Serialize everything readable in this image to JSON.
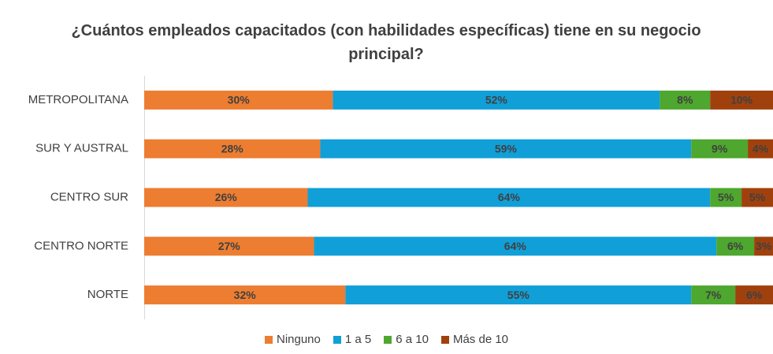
{
  "chart_data": {
    "type": "stacked_bar_horizontal",
    "title": "¿Cuántos empleados capacitados (con habilidades específicas) tiene en su negocio principal?",
    "categories": [
      "METROPOLITANA",
      "SUR Y AUSTRAL",
      "CENTRO SUR",
      "CENTRO NORTE",
      "NORTE"
    ],
    "series": [
      {
        "name": "Ninguno",
        "color": "#ed7d31",
        "values": [
          30,
          28,
          26,
          27,
          32
        ],
        "value_labels": [
          "30%",
          "28%",
          "26%",
          "27%",
          "32%"
        ]
      },
      {
        "name": "1 a 5",
        "color": "#119fd8",
        "values": [
          52,
          59,
          64,
          64,
          55
        ],
        "value_labels": [
          "52%",
          "59%",
          "64%",
          "64%",
          "55%"
        ]
      },
      {
        "name": "6 a 10",
        "color": "#4ea72e",
        "values": [
          8,
          9,
          5,
          6,
          7
        ],
        "value_labels": [
          "8%",
          "9%",
          "5%",
          "6%",
          "7%"
        ]
      },
      {
        "name": "Más de 10",
        "color": "#a0410d",
        "values": [
          10,
          4,
          5,
          3,
          6
        ],
        "value_labels": [
          "10%",
          "4%",
          "5%",
          "3%",
          "6%"
        ]
      }
    ],
    "legend": "bottom"
  }
}
